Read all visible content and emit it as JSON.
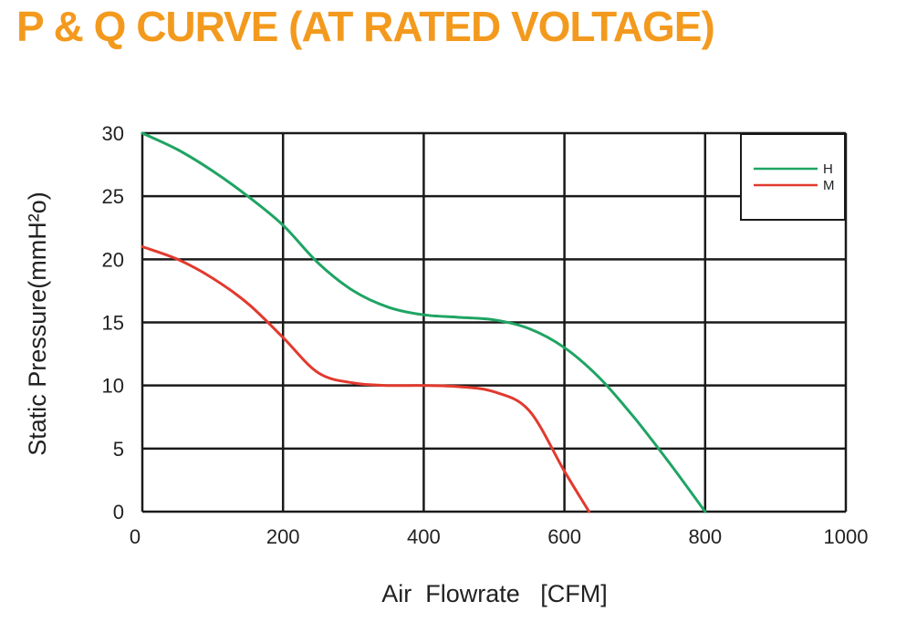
{
  "colors": {
    "title": "#F39A1E",
    "grid": "#1a1a1a",
    "series_h": "#1FA463",
    "series_m": "#E23A2E"
  },
  "chart_data": {
    "type": "line",
    "title": "P & Q CURVE (AT RATED VOLTAGE)",
    "xlabel": "Air  Flowrate   [CFM]",
    "ylabel": "Static Pressure(mmH²o)",
    "xlim": [
      0,
      1000
    ],
    "ylim": [
      0,
      30
    ],
    "xticks": [
      "0",
      "200",
      "400",
      "600",
      "800",
      "1000"
    ],
    "yticks": [
      "0",
      "5",
      "10",
      "15",
      "20",
      "25",
      "30"
    ],
    "grid": true,
    "legend_position": "top-right",
    "series": [
      {
        "name": "H",
        "x": [
          0,
          50,
          100,
          150,
          200,
          250,
          300,
          350,
          400,
          450,
          500,
          550,
          600,
          650,
          700,
          750,
          800
        ],
        "y": [
          30,
          28.7,
          27,
          25,
          22.7,
          19.7,
          17.5,
          16.2,
          15.6,
          15.4,
          15.2,
          14.5,
          13,
          10.6,
          7.4,
          3.8,
          0
        ]
      },
      {
        "name": "M",
        "x": [
          0,
          50,
          100,
          150,
          200,
          250,
          300,
          350,
          400,
          450,
          500,
          550,
          600,
          635
        ],
        "y": [
          21,
          20,
          18.5,
          16.5,
          13.8,
          11,
          10.2,
          10,
          10,
          9.9,
          9.5,
          8,
          3.2,
          0
        ]
      }
    ]
  }
}
